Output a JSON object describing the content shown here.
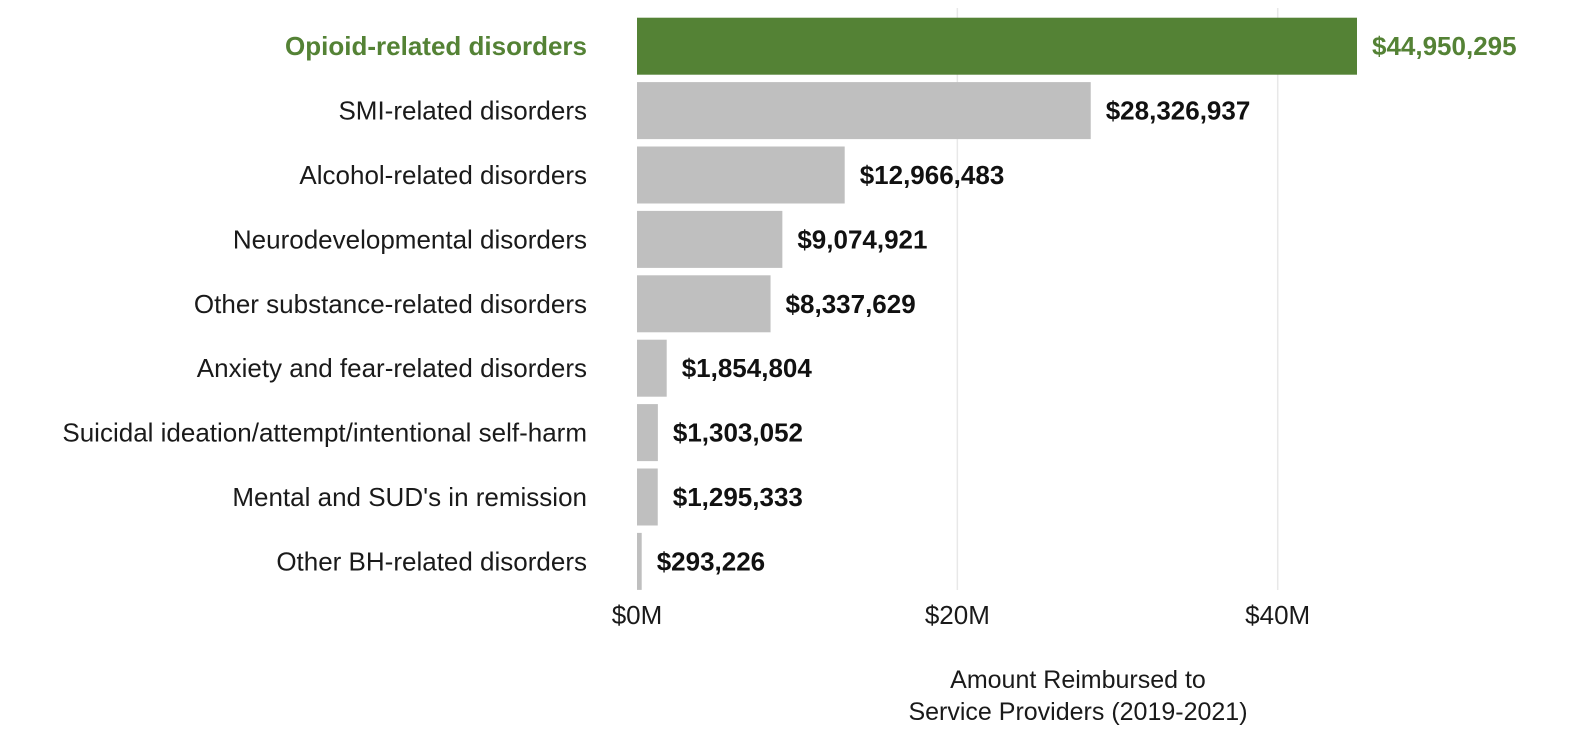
{
  "chart_data": {
    "type": "bar",
    "orientation": "horizontal",
    "categories": [
      "Opioid-related disorders",
      "SMI-related disorders",
      "Alcohol-related disorders",
      "Neurodevelopmental disorders",
      "Other substance-related disorders",
      "Anxiety and fear-related disorders",
      "Suicidal ideation/attempt/intentional self-harm",
      "Mental and SUD's in remission",
      "Other BH-related disorders"
    ],
    "values": [
      44950295,
      28326937,
      12966483,
      9074921,
      8337629,
      1854804,
      1303052,
      1295333,
      293226
    ],
    "value_labels": [
      "$44,950,295",
      "$28,326,937",
      "$12,966,483",
      "$9,074,921",
      "$8,337,629",
      "$1,854,804",
      "$1,303,052",
      "$1,295,333",
      "$293,226"
    ],
    "highlighted_category": "Opioid-related disorders",
    "xlim": [
      0,
      57000000
    ],
    "x_ticks": [
      0,
      20000000,
      40000000
    ],
    "x_tick_labels": [
      "$0M",
      "$20M",
      "$40M"
    ],
    "xlabel_lines": [
      "Amount Reimbursed to",
      "Service Providers (2019-2021)"
    ],
    "ylabel": "",
    "title": "",
    "grid": "vertical",
    "colors": {
      "highlight": "#548235",
      "bar": "#bfbfbf",
      "gridline": "#e8e8e8",
      "label_text": "#1a1a1a",
      "value_text": "#111111"
    }
  }
}
